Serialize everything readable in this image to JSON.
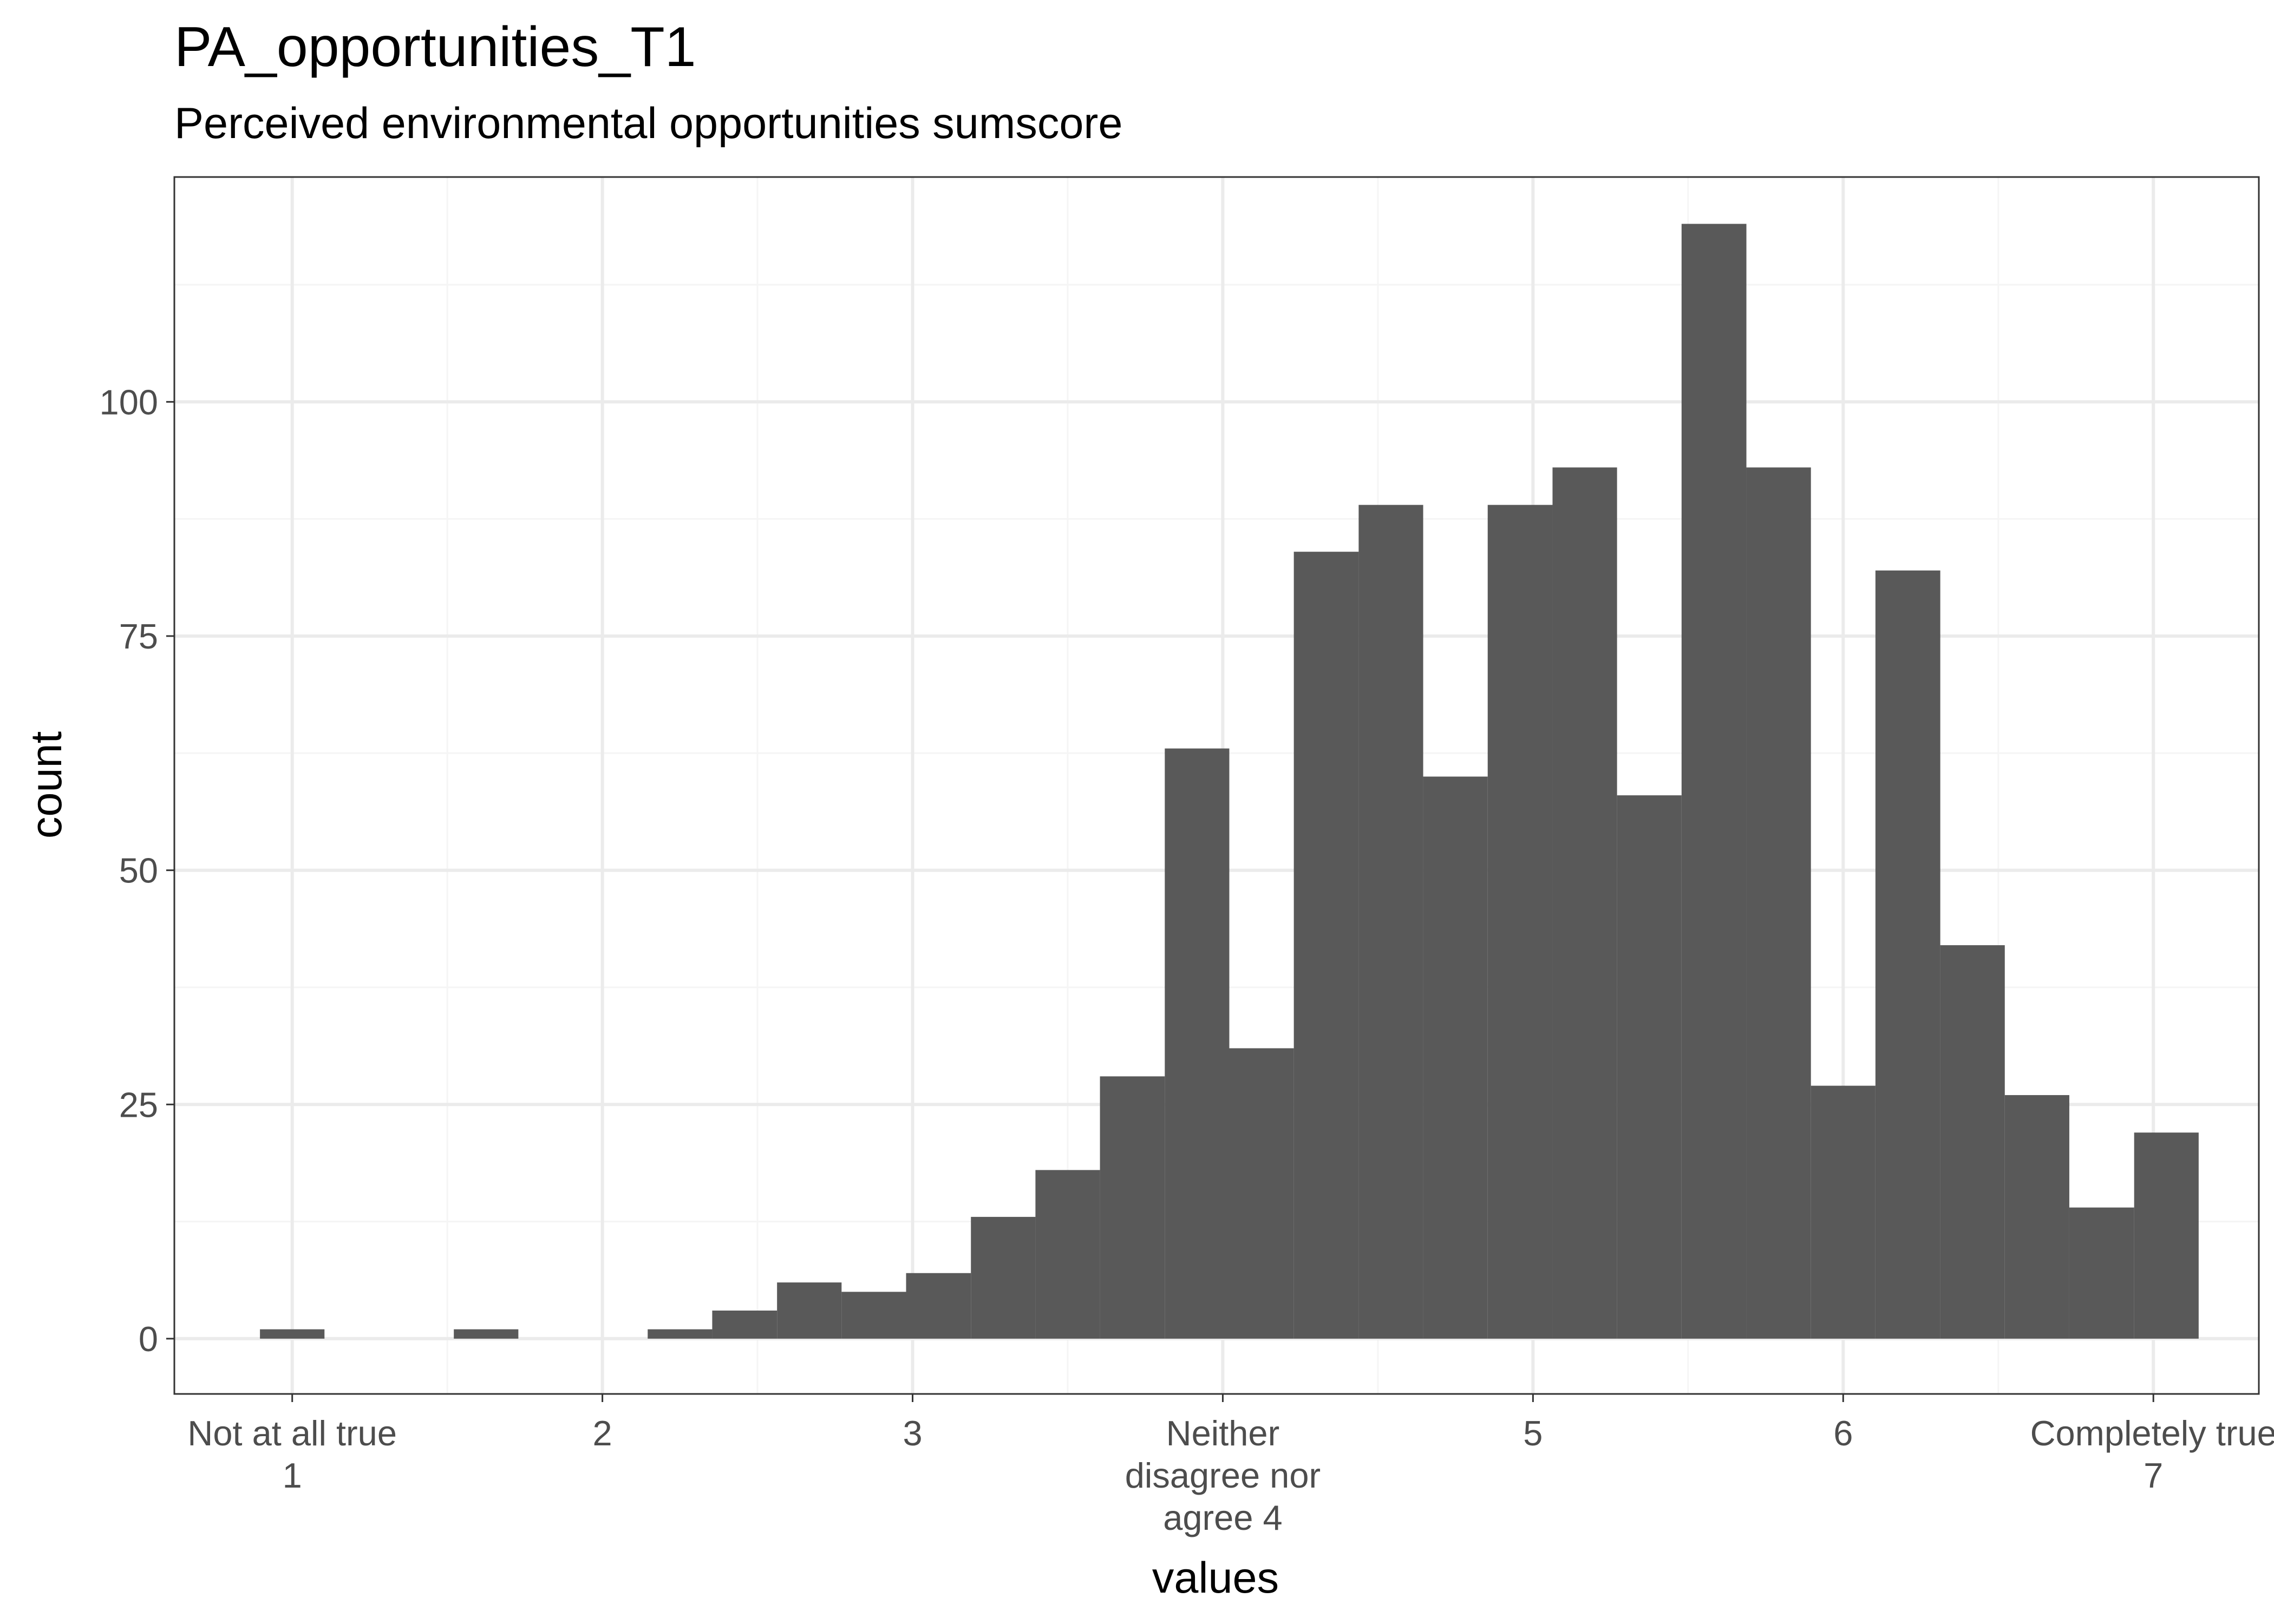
{
  "chart_data": {
    "type": "bar",
    "title": "PA_opportunities_T1",
    "subtitle": "Perceived environmental opportunities sumscore",
    "xlabel": "values",
    "ylabel": "count",
    "xlim": [
      0.62,
      7.34
    ],
    "ylim": [
      -5.9,
      124.0
    ],
    "x_ticks": [
      {
        "value": 1,
        "lines": [
          "Not at all true",
          "1"
        ]
      },
      {
        "value": 2,
        "lines": [
          "2"
        ]
      },
      {
        "value": 3,
        "lines": [
          "3"
        ]
      },
      {
        "value": 4,
        "lines": [
          "Neither",
          "disagree nor",
          "agree 4"
        ]
      },
      {
        "value": 5,
        "lines": [
          "5"
        ]
      },
      {
        "value": 6,
        "lines": [
          "6"
        ]
      },
      {
        "value": 7,
        "lines": [
          "Completely true",
          "7"
        ]
      }
    ],
    "y_ticks": [
      0,
      25,
      50,
      75,
      100
    ],
    "y_minor_ticks": [
      12.5,
      37.5,
      62.5,
      87.5,
      112.5
    ],
    "x_minor_ticks": [
      1.5,
      2.5,
      3.5,
      4.5,
      5.5,
      6.5
    ],
    "grid": true,
    "bin_width": 0.2083,
    "bars": [
      {
        "x0": 0.896,
        "x1": 1.104,
        "count": 1
      },
      {
        "x0": 1.104,
        "x1": 1.313,
        "count": 0
      },
      {
        "x0": 1.313,
        "x1": 1.521,
        "count": 0
      },
      {
        "x0": 1.521,
        "x1": 1.729,
        "count": 1
      },
      {
        "x0": 1.729,
        "x1": 1.938,
        "count": 0
      },
      {
        "x0": 1.938,
        "x1": 2.146,
        "count": 0
      },
      {
        "x0": 2.146,
        "x1": 2.354,
        "count": 1
      },
      {
        "x0": 2.354,
        "x1": 2.563,
        "count": 3
      },
      {
        "x0": 2.563,
        "x1": 2.771,
        "count": 6
      },
      {
        "x0": 2.771,
        "x1": 2.979,
        "count": 5
      },
      {
        "x0": 2.979,
        "x1": 3.188,
        "count": 7
      },
      {
        "x0": 3.188,
        "x1": 3.396,
        "count": 13
      },
      {
        "x0": 3.396,
        "x1": 3.604,
        "count": 18
      },
      {
        "x0": 3.604,
        "x1": 3.813,
        "count": 28
      },
      {
        "x0": 3.813,
        "x1": 4.021,
        "count": 63
      },
      {
        "x0": 4.021,
        "x1": 4.229,
        "count": 31
      },
      {
        "x0": 4.229,
        "x1": 4.438,
        "count": 84
      },
      {
        "x0": 4.438,
        "x1": 4.646,
        "count": 89
      },
      {
        "x0": 4.646,
        "x1": 4.854,
        "count": 60
      },
      {
        "x0": 4.854,
        "x1": 5.063,
        "count": 89
      },
      {
        "x0": 5.063,
        "x1": 5.271,
        "count": 93
      },
      {
        "x0": 5.271,
        "x1": 5.479,
        "count": 58
      },
      {
        "x0": 5.479,
        "x1": 5.688,
        "count": 119
      },
      {
        "x0": 5.688,
        "x1": 5.896,
        "count": 93
      },
      {
        "x0": 5.896,
        "x1": 6.104,
        "count": 27
      },
      {
        "x0": 6.104,
        "x1": 6.313,
        "count": 82
      },
      {
        "x0": 6.313,
        "x1": 6.521,
        "count": 42
      },
      {
        "x0": 6.521,
        "x1": 6.729,
        "count": 26
      },
      {
        "x0": 6.729,
        "x1": 6.938,
        "count": 14
      },
      {
        "x0": 6.938,
        "x1": 7.146,
        "count": 22
      }
    ],
    "colors": {
      "bar": "#595959",
      "grid_major": "#ebebeb",
      "grid_minor": "#f5f5f5",
      "panel_border": "#333333",
      "tick_text": "#4d4d4d"
    }
  }
}
